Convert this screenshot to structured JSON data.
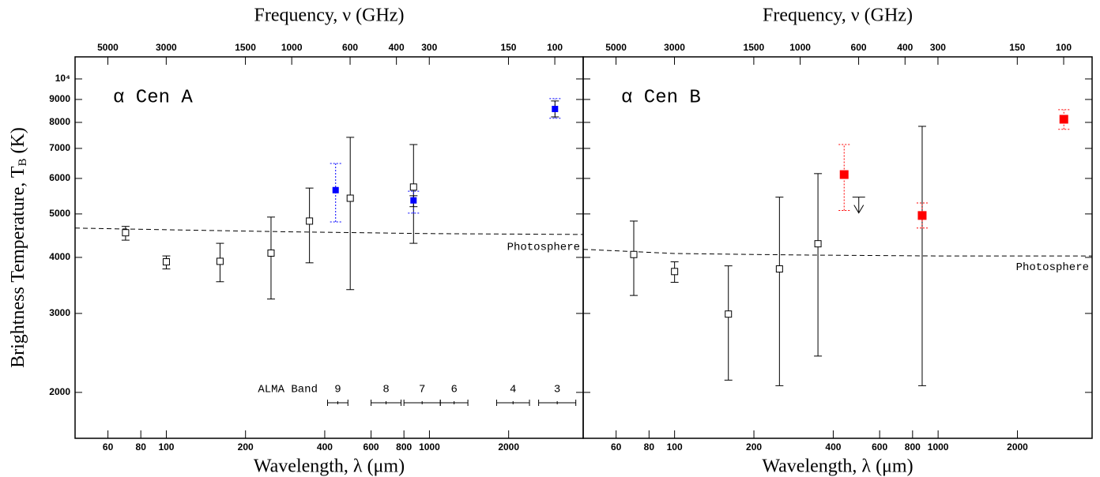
{
  "chart_data": [
    {
      "type": "scatter",
      "label": "α Cen A",
      "label_color": "#0000ff",
      "xlabel": "Wavelength, λ (μm)",
      "x2label": "Frequency, ν (GHz)",
      "ylabel": "Brightness Temperature, T",
      "ylabel_sub": "B",
      "ylabel_unit": "(K)",
      "xscale": "log",
      "yscale": "log",
      "xlim": [
        45,
        3840
      ],
      "xticks": [
        60,
        80,
        100,
        200,
        400,
        600,
        800,
        1000,
        2000
      ],
      "x2lim": [
        6662,
        78
      ],
      "x2ticks": [
        5000,
        3000,
        1500,
        1000,
        600,
        400,
        300,
        150,
        100
      ],
      "ylim": [
        1580,
        11200
      ],
      "yticks": [
        2000,
        3000,
        4000,
        5000,
        6000,
        7000,
        8000,
        9000,
        {
          "value": 10000,
          "label": "10⁴"
        }
      ],
      "series": [
        {
          "marker": "open-square",
          "color": "#000000",
          "marker_size": 8,
          "x": [
            70,
            100,
            160,
            250,
            350,
            500,
            870
          ],
          "values": [
            4540,
            3910,
            3920,
            4090,
            4820,
            5420,
            5740
          ],
          "lower": [
            4370,
            3770,
            3530,
            3230,
            3890,
            3390,
            4300
          ],
          "upper": [
            4690,
            4030,
            4300,
            4920,
            5710,
            7410,
            7140
          ]
        },
        {
          "marker": "filled-square",
          "color": "#0000ff",
          "marker_size": 7,
          "x": [
            440,
            870,
            3000
          ],
          "values": [
            5650,
            5360,
            8570
          ],
          "lower": [
            null,
            5190,
            8230
          ],
          "upper": [
            null,
            5490,
            8930
          ],
          "sys_lower": [
            4800,
            5020,
            8170
          ],
          "sys_upper": [
            6480,
            5620,
            9040
          ]
        }
      ],
      "model": {
        "label": "Photosphere",
        "x": [
          45,
          100,
          300,
          1000,
          3840
        ],
        "values": [
          4650,
          4610,
          4560,
          4520,
          4500
        ]
      },
      "alma_bands": {
        "label": "ALMA Band",
        "bands": [
          {
            "name": "9",
            "range": [
              410,
              490
            ]
          },
          {
            "name": "8",
            "range": [
              600,
              780
            ]
          },
          {
            "name": "7",
            "range": [
              800,
              1100
            ]
          },
          {
            "name": "6",
            "range": [
              1100,
              1400
            ]
          },
          {
            "name": "4",
            "range": [
              1800,
              2400
            ]
          },
          {
            "name": "3",
            "range": [
              2600,
              3600
            ]
          }
        ]
      }
    },
    {
      "type": "scatter",
      "label": "α Cen B",
      "label_color": "#ff0000",
      "xlabel": "Wavelength, λ (μm)",
      "x2label": "Frequency, ν (GHz)",
      "xscale": "log",
      "yscale": "log",
      "xlim": [
        45,
        3840
      ],
      "xticks": [
        60,
        80,
        100,
        200,
        400,
        600,
        800,
        1000,
        2000
      ],
      "x2lim": [
        6662,
        78
      ],
      "x2ticks": [
        5000,
        3000,
        1500,
        1000,
        600,
        400,
        300,
        150,
        100
      ],
      "series": [
        {
          "marker": "open-square",
          "color": "#000000",
          "marker_size": 8,
          "x": [
            70,
            100,
            160,
            250,
            350,
            870
          ],
          "values": [
            4060,
            3720,
            2990,
            3770,
            4290,
            4950
          ],
          "lower": [
            3290,
            3520,
            2130,
            2070,
            2410,
            2070
          ],
          "upper": [
            4820,
            3910,
            3830,
            5450,
            6150,
            7840
          ]
        },
        {
          "marker": "filled-square",
          "color": "#ff0000",
          "marker_size": 10,
          "x": [
            440,
            870,
            3000
          ],
          "values": [
            6120,
            4960,
            8130
          ],
          "lower": [
            6060,
            4900,
            8000
          ],
          "upper": [
            6180,
            5030,
            8270
          ],
          "sys_lower": [
            5090,
            4650,
            7720
          ],
          "sys_upper": [
            7140,
            5290,
            8540
          ]
        }
      ],
      "upper_limits": {
        "x": [
          500
        ],
        "values": [
          5450
        ]
      },
      "model": {
        "label": "Photosphere",
        "x": [
          45,
          100,
          300,
          1000,
          3840
        ],
        "values": [
          4170,
          4080,
          4050,
          4030,
          4030
        ]
      }
    }
  ]
}
